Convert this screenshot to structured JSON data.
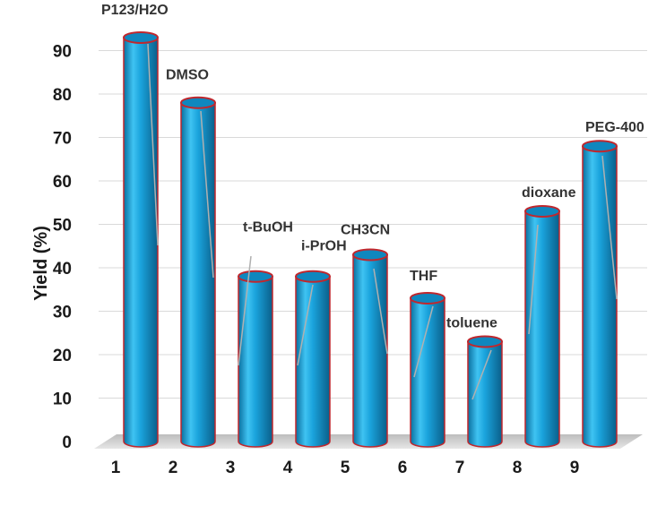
{
  "chart_data": {
    "type": "bar",
    "style": "3d-cylinder",
    "categories": [
      "1",
      "2",
      "3",
      "4",
      "5",
      "6",
      "7",
      "8",
      "9"
    ],
    "values": [
      93,
      78,
      38,
      38,
      43,
      33,
      23,
      53,
      68
    ],
    "bar_labels": [
      "P123/H2O",
      "DMSO",
      "t-BuOH",
      "i-PrOH",
      "CH3CN",
      "THF",
      "toluene",
      "dioxane",
      "PEG-400"
    ],
    "title": "",
    "xlabel": "",
    "ylabel": "Yield (%)",
    "ylim": [
      0,
      100
    ],
    "yticks": [
      0,
      10,
      20,
      30,
      40,
      50,
      60,
      70,
      80,
      90
    ],
    "grid": true,
    "legend": "none",
    "colors": {
      "bar_fill": "#1aa3dc",
      "bar_outline": "#c0272d",
      "grid": "#d9d9d9",
      "leader_line": "#b0b0b0"
    }
  }
}
